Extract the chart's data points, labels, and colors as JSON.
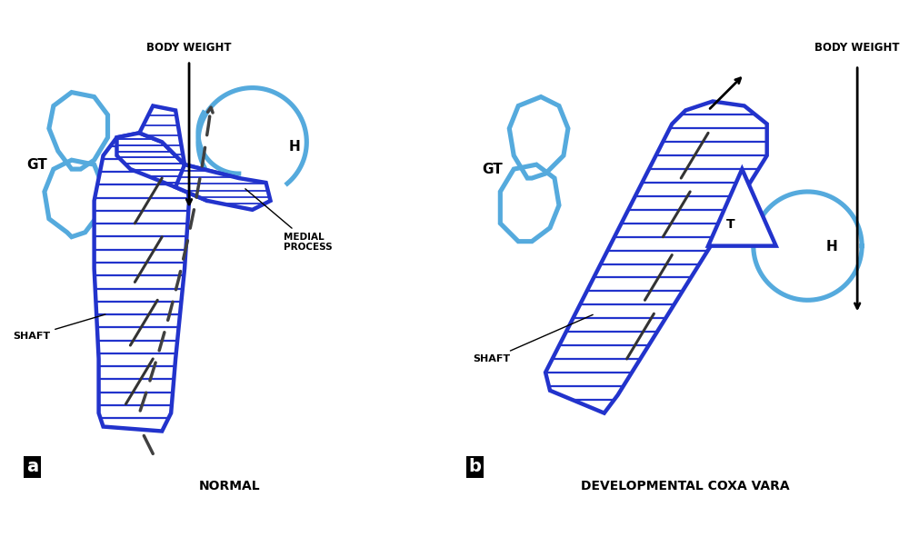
{
  "blue_dark": "#2233cc",
  "blue_light": "#55aadd",
  "lw_thick": 3.2,
  "lw_thin": 1.5,
  "panel_a": {
    "title": "NORMAL",
    "bw_label": "BODY WEIGHT",
    "gt_label": "GT",
    "h_label": "H",
    "shaft_label": "SHAFT",
    "medial_label": "MEDIAL\nPROCESS"
  },
  "panel_b": {
    "title": "DEVELOPMENTAL COXA VARA",
    "bw_label": "BODY WEIGHT",
    "gt_label": "GT",
    "h_label": "H",
    "t_label": "T",
    "shaft_label": "SHAFT"
  }
}
